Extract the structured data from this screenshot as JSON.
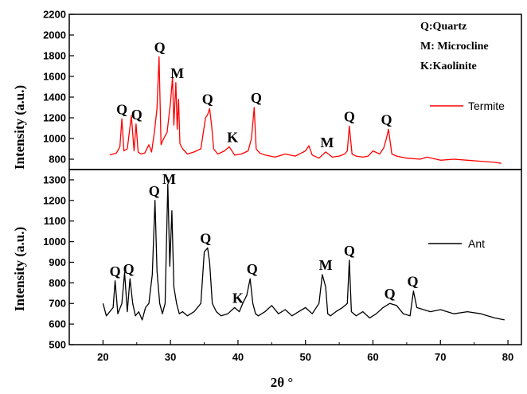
{
  "chart_data": [
    {
      "type": "line",
      "panel": "top",
      "ylabel": "Intensity (a.u.)",
      "ylim": [
        700,
        2200
      ],
      "yticks": [
        "800",
        "1000",
        "1200",
        "1400",
        "1600",
        "1800",
        "2000",
        "2200"
      ],
      "xlim": [
        15,
        82
      ],
      "legend_position": "right",
      "series": [
        {
          "name": "Termite",
          "color": "#ff0000",
          "x": [
            21,
            22,
            22.5,
            22.8,
            23.1,
            23.6,
            24.2,
            24.6,
            24.9,
            25.2,
            25.6,
            26.2,
            26.8,
            27.2,
            27.6,
            28,
            28.3,
            28.6,
            29,
            29.5,
            30,
            30.3,
            30.5,
            30.8,
            31,
            31.2,
            31.4,
            31.8,
            32.5,
            33.5,
            34.5,
            35.2,
            35.5,
            35.8,
            36.1,
            36.4,
            37,
            38,
            38.7,
            39.5,
            40.5,
            41.5,
            42,
            42.4,
            42.7,
            43.2,
            44,
            45.5,
            47,
            48.5,
            50,
            50.5,
            51,
            52,
            53,
            54,
            55,
            55.8,
            56.2,
            56.5,
            56.9,
            57.5,
            58.5,
            59.3,
            60,
            61,
            61.6,
            62,
            62.3,
            62.8,
            63.5,
            65,
            67,
            68,
            70,
            72,
            74,
            76,
            78,
            79
          ],
          "values": [
            840,
            860,
            920,
            1190,
            880,
            900,
            1220,
            880,
            1140,
            870,
            850,
            860,
            940,
            870,
            1050,
            1290,
            1790,
            940,
            1000,
            1060,
            1350,
            1590,
            1130,
            1540,
            1090,
            1380,
            950,
            900,
            850,
            870,
            900,
            1200,
            1230,
            1290,
            1120,
            900,
            850,
            880,
            920,
            840,
            850,
            880,
            1000,
            1300,
            900,
            860,
            840,
            820,
            850,
            830,
            880,
            930,
            840,
            810,
            870,
            820,
            830,
            850,
            880,
            1120,
            850,
            830,
            820,
            830,
            880,
            850,
            910,
            1000,
            1090,
            850,
            830,
            810,
            800,
            820,
            790,
            800,
            790,
            780,
            770,
            760
          ]
        }
      ],
      "annotations": [
        {
          "text": "Q",
          "x": 22.8
        },
        {
          "text": "Q",
          "x": 25.0
        },
        {
          "text": "Q",
          "x": 28.4
        },
        {
          "text": "M",
          "x": 31.0
        },
        {
          "text": "Q",
          "x": 35.5
        },
        {
          "text": "K",
          "x": 39.2
        },
        {
          "text": "Q",
          "x": 42.7
        },
        {
          "text": "M",
          "x": 53.2
        },
        {
          "text": "Q",
          "x": 56.5
        },
        {
          "text": "Q",
          "x": 62.0
        }
      ]
    },
    {
      "type": "line",
      "panel": "bottom",
      "ylabel": "Intensity (a.u.)",
      "xlabel": "2θ °",
      "ylim": [
        500,
        1350
      ],
      "yticks": [
        "500",
        "600",
        "700",
        "800",
        "900",
        "1000",
        "1100",
        "1200",
        "1300"
      ],
      "xlim": [
        15,
        82
      ],
      "xticks": [
        "20",
        "30",
        "40",
        "50",
        "60",
        "70",
        "80"
      ],
      "legend_position": "right",
      "series": [
        {
          "name": "Ant",
          "color": "#000000",
          "x": [
            20,
            20.5,
            21,
            21.5,
            21.8,
            22.2,
            22.8,
            23.2,
            23.6,
            24,
            24.4,
            24.8,
            25.3,
            25.8,
            26.3,
            26.8,
            27.3,
            27.7,
            28,
            28.4,
            28.8,
            29.2,
            29.6,
            29.9,
            30.2,
            30.5,
            30.9,
            31.3,
            31.8,
            32.5,
            33.5,
            34.5,
            35,
            35.5,
            35.8,
            36.2,
            36.8,
            37.5,
            38.5,
            39.5,
            40.2,
            40.7,
            41.3,
            41.8,
            42.2,
            42.6,
            43,
            44,
            45,
            46,
            47,
            48,
            49,
            50,
            51,
            52,
            52.5,
            53,
            53.3,
            53.7,
            54.5,
            55.5,
            56.2,
            56.5,
            56.8,
            57.5,
            58.5,
            59.5,
            60.5,
            61.5,
            62.5,
            63.5,
            64.5,
            65.5,
            66,
            66.5,
            67.5,
            68.5,
            70,
            72,
            74,
            76,
            78,
            79.5
          ],
          "values": [
            700,
            640,
            660,
            680,
            810,
            650,
            700,
            850,
            660,
            820,
            700,
            640,
            660,
            620,
            680,
            700,
            840,
            1200,
            860,
            700,
            650,
            700,
            1280,
            880,
            1150,
            780,
            700,
            650,
            660,
            640,
            660,
            700,
            950,
            970,
            900,
            700,
            660,
            640,
            650,
            680,
            660,
            700,
            740,
            820,
            700,
            650,
            640,
            660,
            690,
            650,
            670,
            640,
            660,
            680,
            650,
            700,
            840,
            780,
            650,
            640,
            660,
            680,
            700,
            910,
            660,
            640,
            660,
            630,
            650,
            680,
            700,
            690,
            650,
            640,
            760,
            680,
            670,
            660,
            670,
            650,
            660,
            650,
            630,
            620
          ]
        }
      ],
      "annotations": [
        {
          "text": "Q",
          "x": 21.8
        },
        {
          "text": "Q",
          "x": 23.8
        },
        {
          "text": "Q",
          "x": 27.6
        },
        {
          "text": "M",
          "x": 29.8
        },
        {
          "text": "Q",
          "x": 35.2
        },
        {
          "text": "K",
          "x": 40.0
        },
        {
          "text": "Q",
          "x": 42.1
        },
        {
          "text": "M",
          "x": 53.0
        },
        {
          "text": "Q",
          "x": 56.5
        },
        {
          "text": "Q",
          "x": 62.5
        },
        {
          "text": "Q",
          "x": 65.9
        }
      ]
    }
  ],
  "phase_key": [
    "Q:Quartz",
    "M: Microcline",
    "K:Kaolinite"
  ]
}
